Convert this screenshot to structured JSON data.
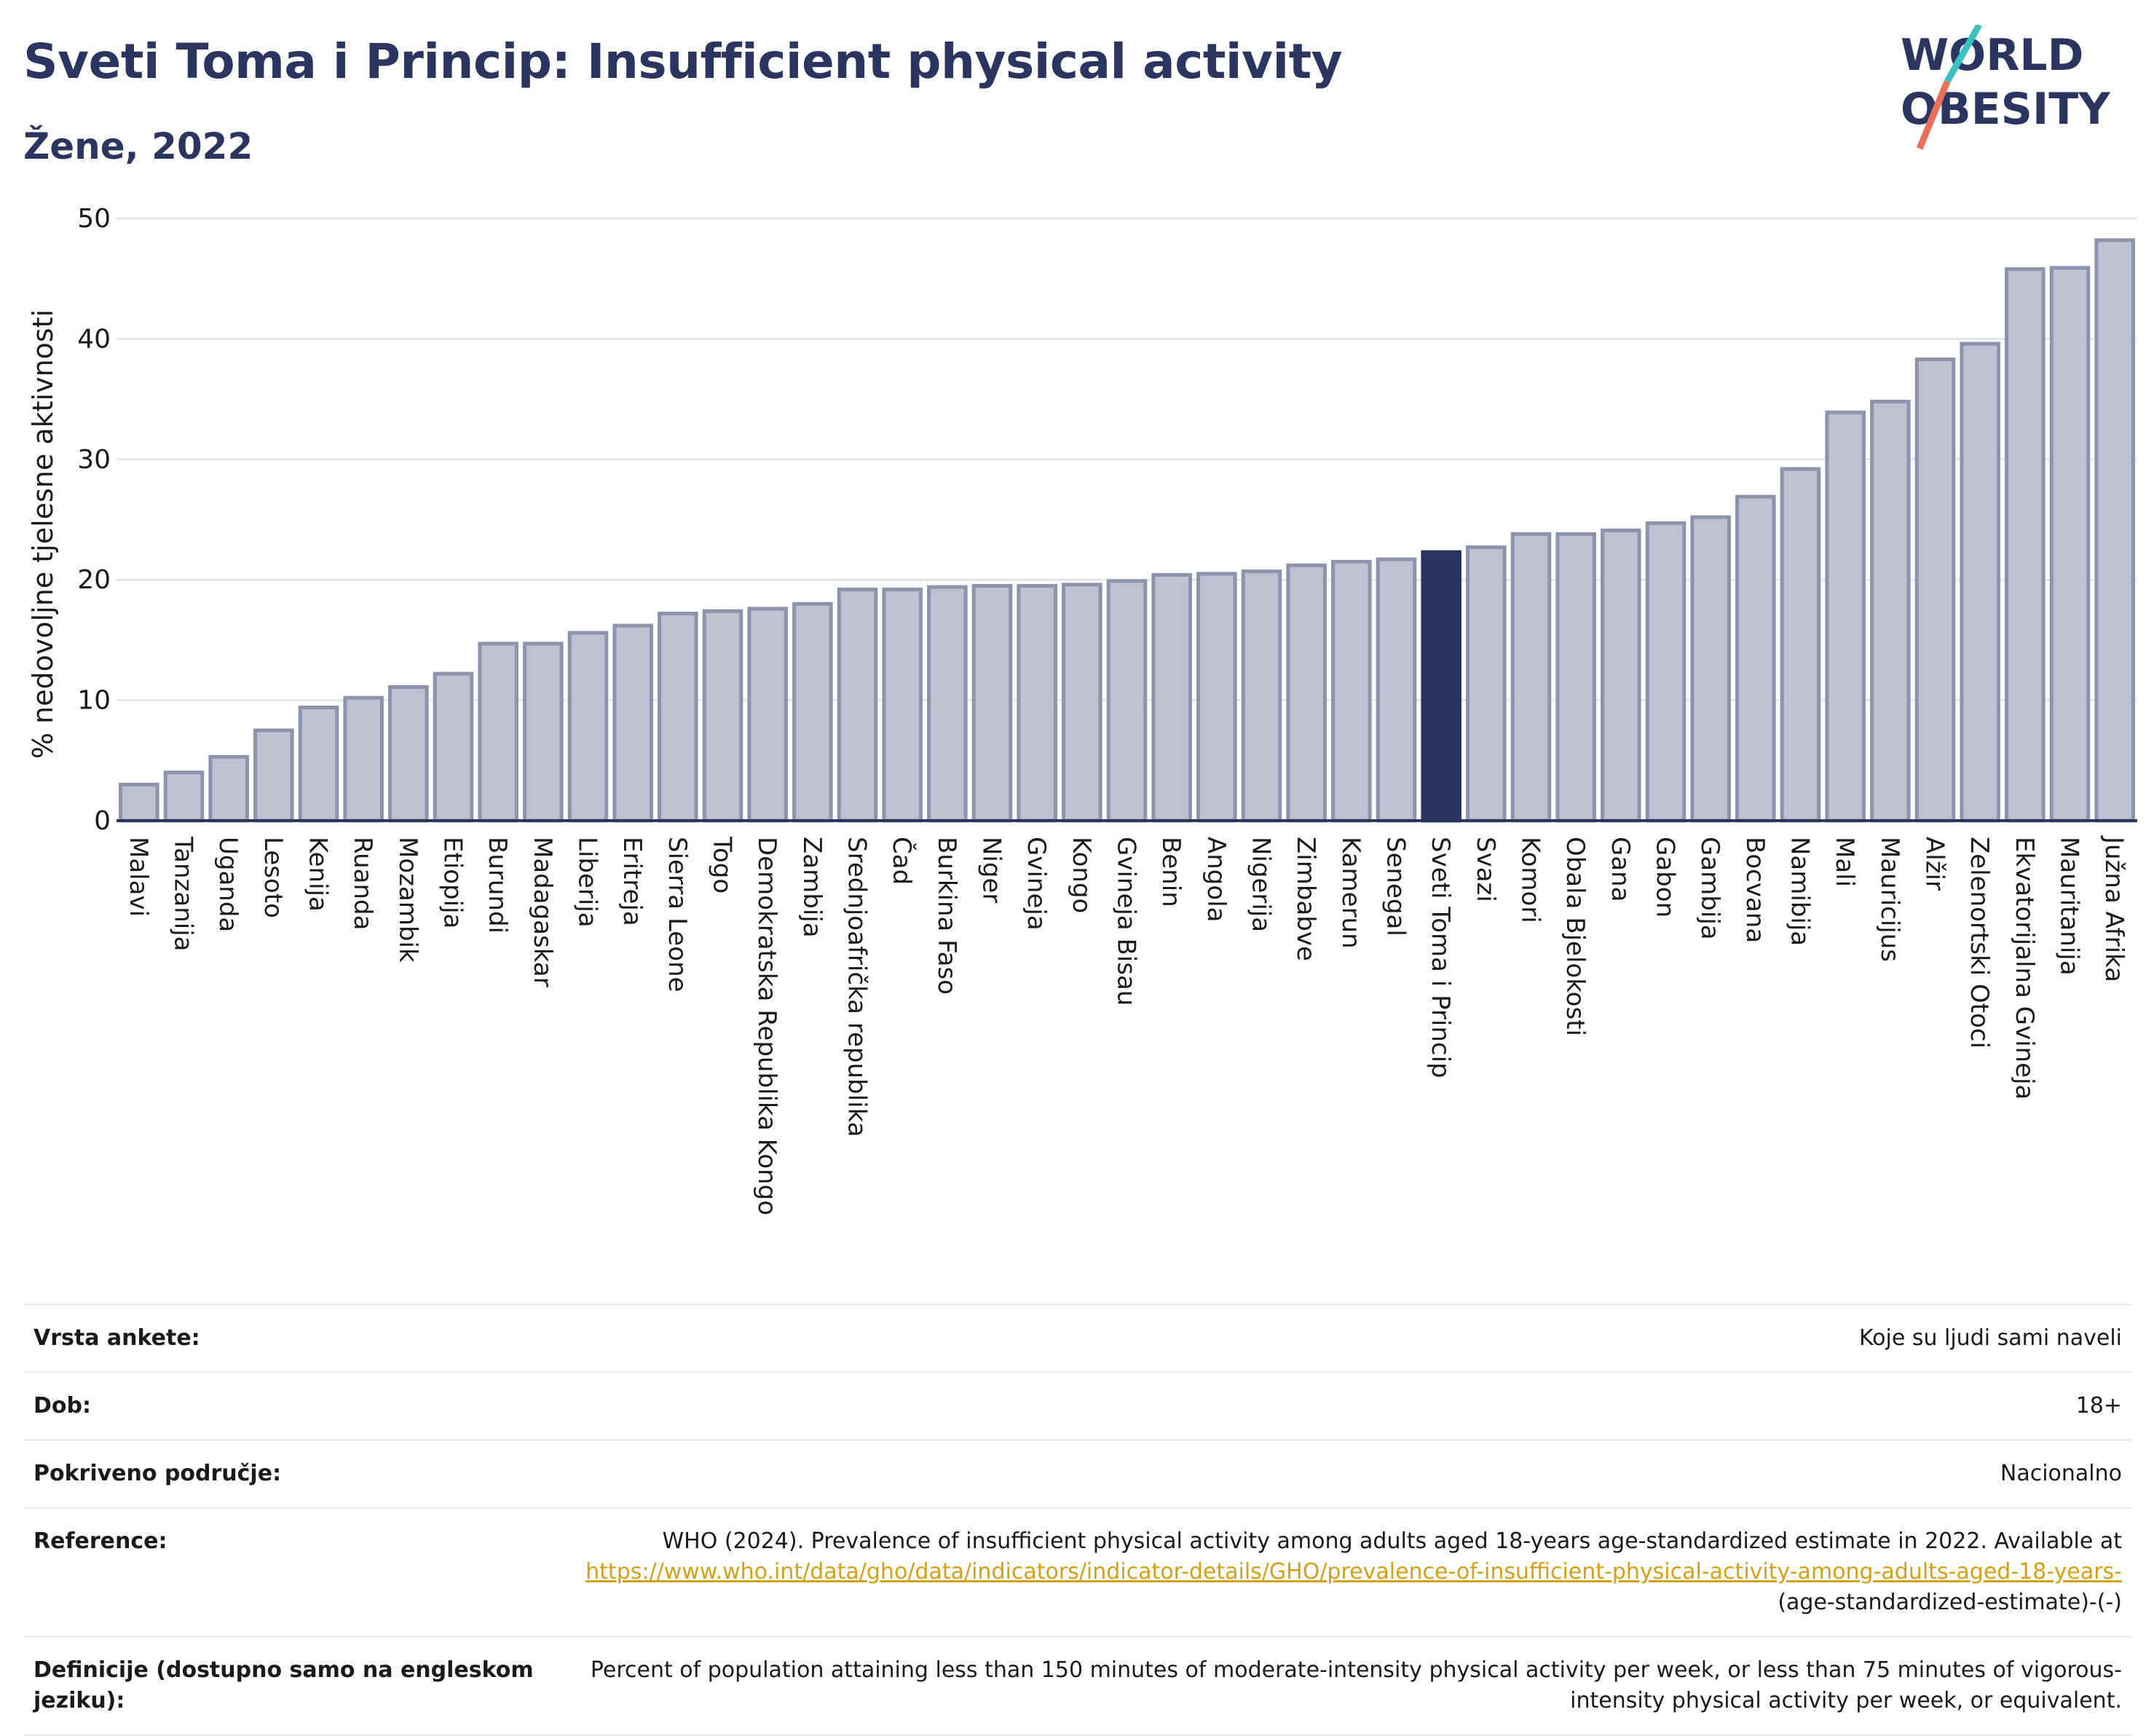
{
  "header": {
    "title": "Sveti Toma i Princip: Insufficient physical activity",
    "subtitle": "Žene, 2022"
  },
  "logo": {
    "line1": "WORLD",
    "line2": "OBESITY",
    "colors": {
      "text": "#2a3560",
      "slash_top": "#3cc0c0",
      "slash_bottom": "#e8705a"
    }
  },
  "colors": {
    "bar": "#bdc1d0",
    "bar_border": "#8d93ad",
    "highlight": "#2a3560",
    "grid": "#e6e6e6",
    "axis": "#2a3560"
  },
  "chart_data": {
    "type": "bar",
    "ylabel": "% nedovoljne tjelesne aktivnosti",
    "xlabel": "",
    "ylim": [
      0,
      50
    ],
    "yticks": [
      0,
      10,
      20,
      30,
      40,
      50
    ],
    "grid": true,
    "highlight": "Sveti Toma i Princip",
    "categories": [
      "Malavi",
      "Tanzanija",
      "Uganda",
      "Lesoto",
      "Kenija",
      "Ruanda",
      "Mozambik",
      "Etiopija",
      "Burundi",
      "Madagaskar",
      "Liberija",
      "Eritreja",
      "Sierra Leone",
      "Togo",
      "Demokratska Republika Kongo",
      "Zambija",
      "Srednjoafrička republika",
      "Čad",
      "Burkina Faso",
      "Niger",
      "Gvineja",
      "Kongo",
      "Gvineja Bisau",
      "Benin",
      "Angola",
      "Nigerija",
      "Zimbabve",
      "Kamerun",
      "Senegal",
      "Sveti Toma i Princip",
      "Svazi",
      "Komori",
      "Obala Bjelokosti",
      "Gana",
      "Gabon",
      "Gambija",
      "Bocvana",
      "Namibija",
      "Mali",
      "Mauricijus",
      "Alžir",
      "Zelenortski Otoci",
      "Ekvatorijalna Gvineja",
      "Mauritanija",
      "Južna Afrika"
    ],
    "values": [
      3.0,
      4.0,
      5.3,
      7.5,
      9.4,
      10.2,
      11.1,
      12.2,
      14.7,
      14.7,
      15.6,
      16.2,
      17.2,
      17.4,
      17.6,
      18.0,
      19.2,
      19.2,
      19.4,
      19.5,
      19.5,
      19.6,
      19.9,
      20.4,
      20.5,
      20.7,
      21.2,
      21.5,
      21.7,
      22.3,
      22.7,
      23.8,
      23.8,
      24.1,
      24.7,
      25.2,
      26.9,
      29.2,
      33.9,
      34.8,
      38.3,
      39.6,
      45.8,
      45.9,
      48.2
    ]
  },
  "info": [
    {
      "key": "Vrsta ankete:",
      "value": "Koje su ljudi sami naveli"
    },
    {
      "key": "Dob:",
      "value": "18+"
    },
    {
      "key": "Pokriveno područje:",
      "value": "Nacionalno"
    },
    {
      "key": "Reference:",
      "value_pre": "WHO (2024). Prevalence of insufficient physical activity among adults aged 18-years age-standardized estimate in 2022. Available at",
      "link": "https://www.who.int/data/gho/data/indicators/indicator-details/GHO/prevalence-of-insufficient-physical-activity-among-adults-aged-18-years-",
      "value_post": "(age-standardized-estimate)-(-)"
    },
    {
      "key": "Definicije (dostupno samo na engleskom jeziku):",
      "value": "Percent of population attaining less than 150 minutes of moderate-intensity physical activity per week, or less than 75 minutes of vigorous-intensity physical activity per week, or equivalent."
    }
  ]
}
